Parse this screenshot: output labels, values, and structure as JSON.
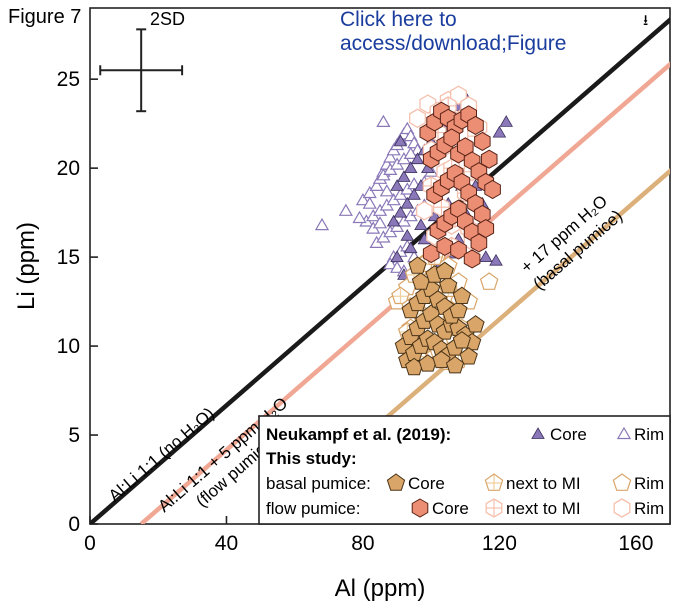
{
  "page": {
    "figure_label": "Figure 7",
    "download_link": "Click here to access/download;Figure",
    "download_icon": "download-icon"
  },
  "chart_data": {
    "type": "scatter",
    "title": "",
    "xlabel": "Al (ppm)",
    "ylabel": "Li (ppm)",
    "xlim": [
      0,
      170
    ],
    "ylim": [
      0,
      29
    ],
    "xticks": [
      0,
      40,
      80,
      120,
      160
    ],
    "yticks": [
      0,
      5,
      10,
      15,
      20,
      25
    ],
    "error_bar": {
      "label": "2SD",
      "x_halfwidth": 12,
      "y_halfwidth": 2.3,
      "center": [
        15,
        25.5
      ]
    },
    "reference_lines": [
      {
        "label": "Al:Li 1:1 (no H₂O)",
        "offset": 0,
        "color": "#1a1a1a"
      },
      {
        "label": "Al:Li 1:1 + 5 ppm H₂O",
        "sublabel": "(flow pumice)",
        "offset": 15,
        "color": "#f0a894"
      },
      {
        "label": "+ 17 ppm H₂O",
        "sublabel": "(basal pumice)",
        "offset": 51,
        "color": "#dcb07a"
      }
    ],
    "legend": {
      "placement": "bottom-right",
      "neukampf_label": "Neukampf et al. (2019):",
      "this_study_label": "This study:",
      "basal_label": "basal pumice:",
      "flow_label": "flow pumice:",
      "core": "Core",
      "rim": "Rim",
      "next_to_mi": "next to MI"
    },
    "colors": {
      "neukampf": "#8a78b8",
      "basal": "#d9a568",
      "flow": "#ec8e74",
      "next_to_mi_basal": "#f0cf9a",
      "next_to_mi_flow": "#f6c0ad"
    },
    "series": [
      {
        "name": "Neukampf et al. (2019) Core",
        "marker": "triangle-filled",
        "x": [
          90,
          92,
          94,
          96,
          98,
          100,
          102,
          104,
          106,
          108,
          110,
          112,
          114,
          89,
          91,
          93,
          95,
          97,
          99,
          101,
          103,
          105,
          107,
          109,
          111,
          113,
          115,
          90,
          94,
          98,
          102,
          106,
          110,
          92,
          96,
          100,
          104,
          108,
          112,
          93,
          97,
          101,
          105,
          109,
          95,
          99,
          103,
          107,
          91,
          111,
          116,
          120,
          122,
          119
        ],
        "y": [
          19,
          19.5,
          20,
          20.5,
          21,
          21.5,
          22,
          22.5,
          23,
          23.5,
          24,
          23,
          22,
          17,
          17.5,
          18,
          18.5,
          19,
          20,
          20.8,
          21.4,
          22,
          22.8,
          21,
          20,
          19,
          18,
          15,
          15.5,
          16,
          16.5,
          17,
          17.5,
          14,
          14.5,
          15,
          15.5,
          16,
          16.5,
          16.2,
          16.8,
          17.3,
          18,
          19,
          13.8,
          14.2,
          14.7,
          15.2,
          21.5,
          16,
          15,
          22,
          22.6,
          14.8
        ]
      },
      {
        "name": "Neukampf et al. (2019) Rim",
        "marker": "triangle-open",
        "x": [
          68,
          75,
          80,
          82,
          84,
          85,
          86,
          87,
          88,
          89,
          90,
          91,
          92,
          93,
          94,
          95,
          96,
          97,
          81,
          83,
          85,
          87,
          89,
          91,
          93,
          95,
          84,
          86,
          88,
          90,
          92,
          94,
          96,
          98,
          86,
          88,
          90,
          92,
          94,
          89,
          91,
          93,
          83,
          85,
          87,
          79,
          82,
          88,
          90,
          92,
          95,
          86,
          98,
          100
        ],
        "y": [
          16.8,
          17.6,
          18.2,
          18.6,
          19,
          19.4,
          19.8,
          20.2,
          20.6,
          21,
          21.3,
          21.6,
          21.9,
          22.2,
          21.8,
          21.4,
          21,
          20.6,
          17,
          17.3,
          17.6,
          17.9,
          18.2,
          18.5,
          18.8,
          19.1,
          15.8,
          16.1,
          16.4,
          16.7,
          17,
          17.3,
          17.6,
          17.9,
          19.6,
          19.9,
          20.2,
          20.5,
          20.8,
          15,
          15.3,
          15.6,
          16.6,
          16.9,
          18.7,
          17.2,
          18,
          14.6,
          14.4,
          14.2,
          15,
          22.6,
          19.2,
          19.8
        ]
      },
      {
        "name": "basal pumice Core",
        "marker": "pentagon-filled",
        "x": [
          92,
          94,
          96,
          98,
          100,
          102,
          104,
          106,
          108,
          110,
          112,
          93,
          95,
          97,
          99,
          101,
          103,
          105,
          107,
          109,
          111,
          94,
          96,
          98,
          100,
          102,
          104,
          106,
          108,
          95,
          99,
          103,
          107,
          97,
          101,
          105,
          109,
          113,
          96,
          104
        ],
        "y": [
          10,
          10.5,
          11,
          11.4,
          11.8,
          11.2,
          10.8,
          11.2,
          11,
          10.6,
          10.2,
          9.2,
          9.6,
          10,
          10.4,
          10.2,
          9.8,
          9.5,
          9.9,
          10.3,
          9.4,
          12,
          12.4,
          12.8,
          13.2,
          12.6,
          12.2,
          11.7,
          12,
          8.8,
          9,
          9.2,
          8.9,
          13.6,
          14,
          13.4,
          12.8,
          11.2,
          14.5,
          14.2
        ]
      },
      {
        "name": "basal pumice next to MI",
        "marker": "pentagon-cross",
        "x": [
          91,
          94,
          97,
          100,
          103,
          106,
          109,
          95,
          98,
          101,
          104,
          107,
          96,
          102,
          108,
          93,
          99,
          105
        ],
        "y": [
          12.8,
          12.2,
          11.8,
          12.4,
          13,
          12,
          11,
          14,
          14.6,
          15,
          14.2,
          10.2,
          9.4,
          9.8,
          9.2,
          10.8,
          13.6,
          13.2
        ]
      },
      {
        "name": "basal pumice Rim",
        "marker": "pentagon-open",
        "x": [
          90,
          93,
          96,
          99,
          102,
          105,
          108,
          111,
          94,
          98,
          102,
          106,
          110,
          97,
          101,
          105,
          109,
          100,
          104,
          117
        ],
        "y": [
          12.5,
          13.3,
          14,
          14.8,
          15.2,
          14.5,
          13.6,
          12.5,
          11,
          11.6,
          12.2,
          11.5,
          10.6,
          9.8,
          9.4,
          9.1,
          9.6,
          13.8,
          12.8,
          13.6
        ]
      },
      {
        "name": "flow pumice Core",
        "marker": "hexagon-filled",
        "x": [
          99,
          101,
          103,
          105,
          107,
          109,
          111,
          113,
          115,
          117,
          100,
          102,
          104,
          106,
          108,
          110,
          112,
          114,
          116,
          101,
          103,
          105,
          107,
          109,
          111,
          113,
          115,
          102,
          104,
          106,
          108,
          110,
          112,
          114,
          100,
          104,
          108,
          112,
          116,
          118
        ],
        "y": [
          22,
          22.6,
          23.2,
          22.8,
          22.3,
          22.7,
          23,
          22.4,
          21.5,
          20.5,
          20.5,
          20.9,
          21.3,
          21.7,
          20.8,
          21.2,
          20.4,
          19.8,
          19.2,
          18.5,
          18.9,
          19.3,
          19.7,
          19.2,
          18.6,
          18,
          17.4,
          16.5,
          16.9,
          17.3,
          17.7,
          17,
          16.4,
          15.8,
          15.2,
          15.6,
          15.4,
          14.9,
          16.6,
          18.8
        ]
      },
      {
        "name": "flow pumice next to MI",
        "marker": "hexagon-cross",
        "x": [
          102,
          104,
          106,
          108,
          110,
          112,
          103,
          107,
          111,
          105,
          109,
          100,
          113,
          106
        ],
        "y": [
          22,
          21.2,
          20,
          19.4,
          18.6,
          19.8,
          17.8,
          17.2,
          16.6,
          23.5,
          22.8,
          19,
          21.8,
          15.6
        ]
      },
      {
        "name": "flow pumice Rim",
        "marker": "hexagon-open",
        "x": [
          99,
          102,
          105,
          108,
          111,
          100,
          104,
          110,
          96,
          114,
          98,
          106,
          112,
          101
        ],
        "y": [
          23.6,
          23.2,
          23.8,
          24.1,
          23.5,
          21,
          19.8,
          20.4,
          22.8,
          22.3,
          17.6,
          16.8,
          15.9,
          16.2
        ]
      }
    ]
  }
}
